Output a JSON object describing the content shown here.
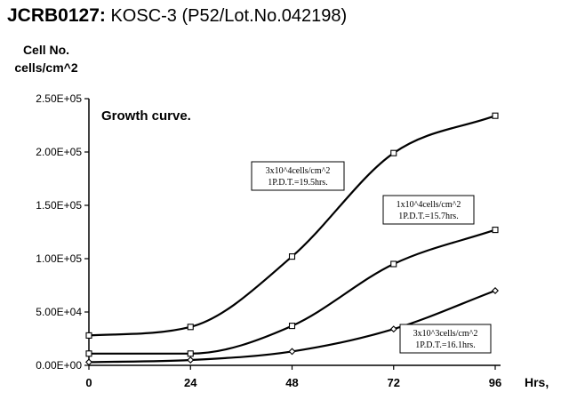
{
  "page": {
    "title_code": "JCRB0127",
    "title_sep": ":",
    "title_rest": " KOSC-3 (P52/Lot.No.042198)",
    "ylabel_line1": "Cell No.",
    "ylabel_line2": "cells/cm^2"
  },
  "chart_data": {
    "type": "line",
    "title": "Growth curve.",
    "xlabel": "Hrs,",
    "ylabel": "Cell No. cells/cm^2",
    "x": [
      0,
      24,
      48,
      72,
      96
    ],
    "x_tick_labels": [
      "0",
      "24",
      "48",
      "72",
      "96"
    ],
    "ylim": [
      0,
      250000
    ],
    "y_ticks": [
      0,
      50000,
      100000,
      150000,
      200000,
      250000
    ],
    "y_tick_labels": [
      "0.00E+00",
      "5.00E+04",
      "1.00E+05",
      "1.50E+05",
      "2.00E+05",
      "2.50E+05"
    ],
    "grid": false,
    "legend": "annotations",
    "series": [
      {
        "marker": "square",
        "values": [
          28000,
          36000,
          102000,
          199000,
          234000
        ],
        "annotation": [
          "3x10^4cells/cm^2",
          "1P.D.T.=19.5hrs."
        ]
      },
      {
        "marker": "square",
        "values": [
          11000,
          11000,
          37000,
          95000,
          127000
        ],
        "annotation": [
          "1x10^4cells/cm^2",
          "1P.D.T.=15.7hrs."
        ]
      },
      {
        "marker": "diamond",
        "values": [
          3000,
          5000,
          13000,
          34000,
          70000
        ],
        "annotation": [
          "3x10^3cells/cm^2",
          "1P.D.T.=16.1hrs."
        ]
      }
    ]
  }
}
